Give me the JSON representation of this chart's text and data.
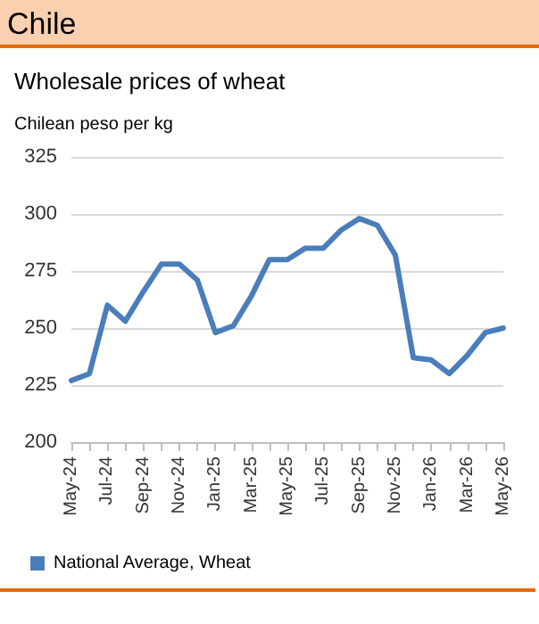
{
  "chart_data": {
    "type": "line",
    "title": "Chile",
    "subtitle": "Wholesale prices of wheat",
    "ylabel": "Chilean peso per kg",
    "categories": [
      "May-24",
      null,
      "Jul-24",
      null,
      "Sep-24",
      null,
      "Nov-24",
      null,
      "Jan-25",
      null,
      "Mar-25",
      null,
      "May-25",
      null,
      "Jul-25",
      null,
      "Sep-25",
      null,
      "Nov-25",
      null,
      "Jan-26",
      null,
      "Mar-26",
      null,
      "May-26"
    ],
    "series": [
      {
        "name": "National Average, Wheat",
        "color": "#4a7ebb",
        "values": [
          227,
          230,
          260,
          253,
          266,
          278,
          278,
          271,
          248,
          251,
          264,
          280,
          280,
          285,
          285,
          293,
          298,
          295,
          282,
          237,
          236,
          230,
          238,
          248,
          250
        ]
      }
    ],
    "ylim": [
      200,
      325
    ],
    "yticks": [
      200,
      225,
      250,
      275,
      300,
      325
    ],
    "grid": "y",
    "legend": "bottom left",
    "marker": "none",
    "line_style": "solid"
  }
}
